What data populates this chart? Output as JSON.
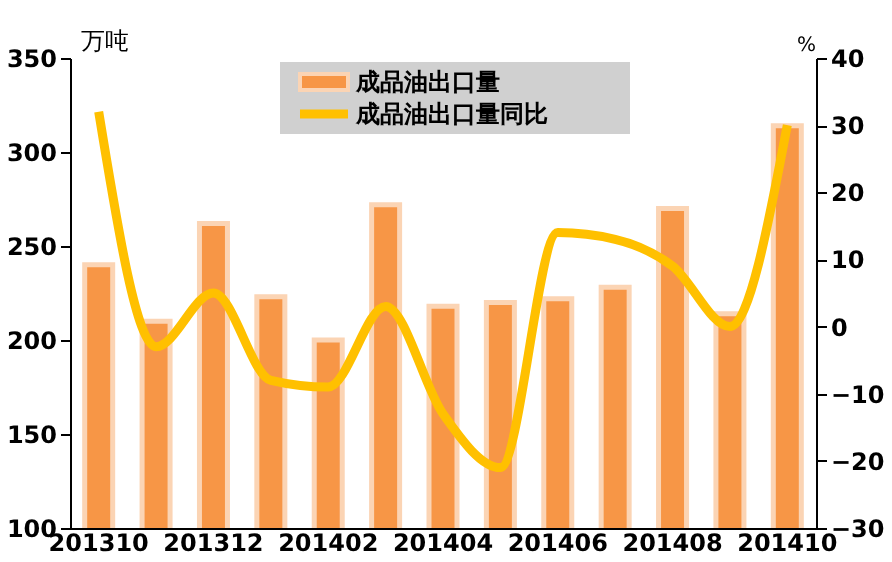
{
  "chart_data": {
    "type": "bar",
    "categories": [
      "201310",
      null,
      "201312",
      null,
      "201402",
      null,
      "201404",
      null,
      "201406",
      null,
      "201408",
      null,
      "201410"
    ],
    "series": [
      {
        "name": "成品油出口量",
        "color": "#f79646",
        "values": [
          240,
          210,
          262,
          223,
          200,
          272,
          218,
          220,
          222,
          228,
          270,
          214,
          314
        ]
      },
      {
        "name": "成品油出口量同比",
        "type": "line",
        "color": "#ffc000",
        "axis": "y2",
        "values": [
          32,
          -3,
          5,
          -8,
          -9,
          3,
          -13,
          -21,
          14,
          13,
          9,
          0,
          30
        ]
      }
    ],
    "ylabel": "万吨",
    "y2label": "%",
    "ylim": [
      100,
      350
    ],
    "yticks": [
      100,
      150,
      200,
      250,
      300,
      350
    ],
    "y2lim": [
      -30,
      40
    ],
    "y2ticks": [
      -30,
      -20,
      -10,
      0,
      10,
      20,
      30,
      40
    ],
    "legend": "top",
    "grid": false,
    "marker": "none",
    "line_style": "solid"
  }
}
